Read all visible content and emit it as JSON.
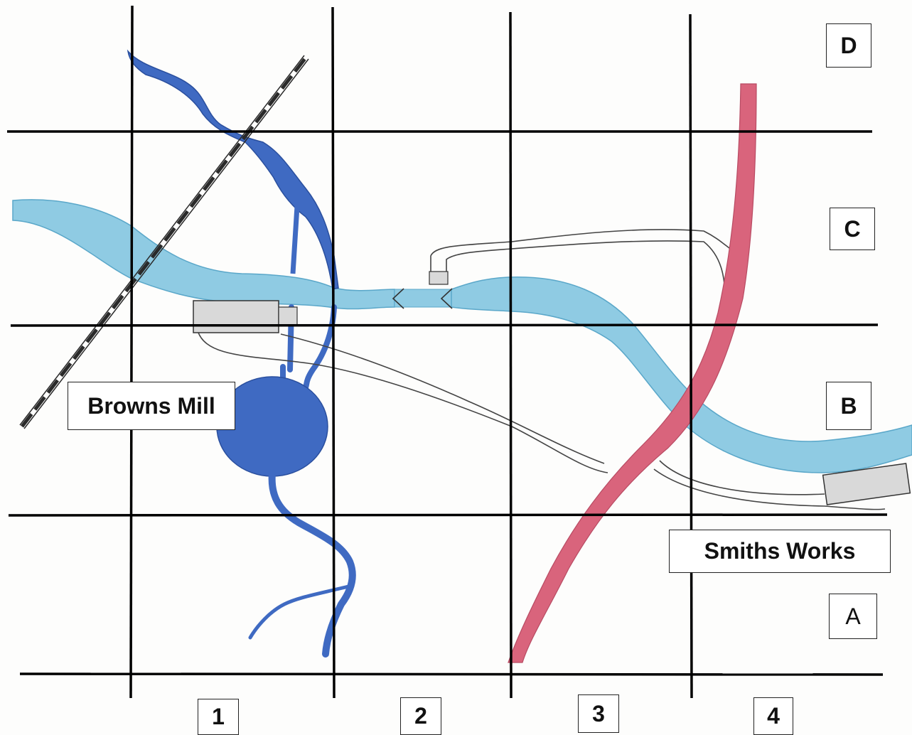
{
  "map": {
    "colors": {
      "main_river": "#8fcbe3",
      "main_river_edge": "#5aa7c9",
      "tributary": "#3f6ac2",
      "tributary_edge": "#2a4f9e",
      "main_road": "#d9647c",
      "minor_road": "#444444",
      "railway": "#2a2a2a",
      "building": "#d9d9d9",
      "grid": "#000000"
    },
    "features": {
      "main_river": "main-river",
      "tributary": "tributary-river",
      "pond": "mill-pond",
      "main_road": "main-road",
      "minor_road": "minor-road",
      "railway": "railway-line",
      "bridge": "footbridge"
    },
    "places": {
      "browns_mill": "Browns Mill",
      "smiths_works": "Smiths Works"
    },
    "rows": {
      "d": "D",
      "c": "C",
      "b": "B",
      "a": "A"
    },
    "columns": {
      "c1": "1",
      "c2": "2",
      "c3": "3",
      "c4": "4"
    }
  }
}
